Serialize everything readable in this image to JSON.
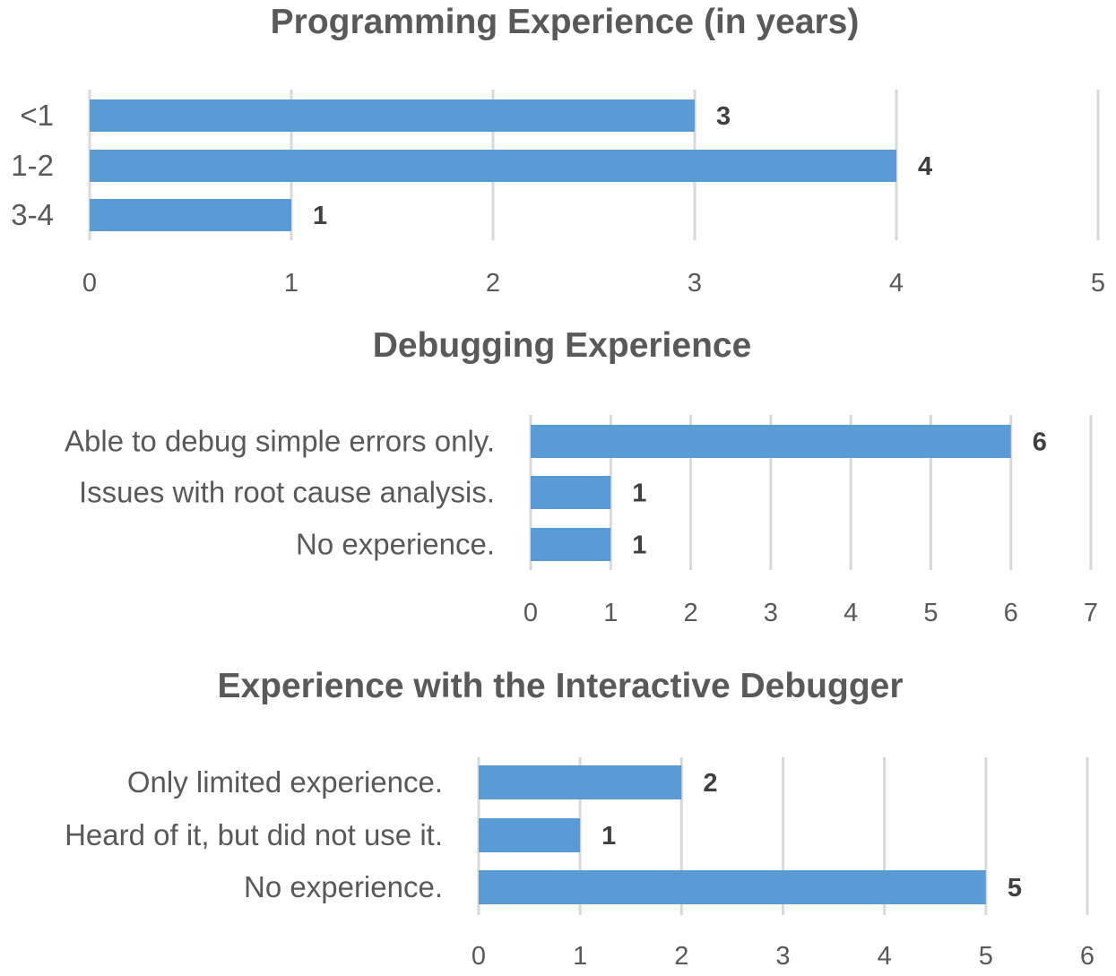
{
  "chart_data": [
    {
      "type": "bar",
      "orientation": "horizontal",
      "title": "Programming Experience (in years)",
      "categories": [
        "<1",
        "1-2",
        "3-4"
      ],
      "values": [
        3,
        4,
        1
      ],
      "xlim": [
        0,
        5
      ],
      "ticks": [
        "0",
        "1",
        "2",
        "3",
        "4",
        "5"
      ],
      "data_labels": [
        "3",
        "4",
        "1"
      ],
      "grid": true,
      "bar_color": "#5b9bd5"
    },
    {
      "type": "bar",
      "orientation": "horizontal",
      "title": "Debugging Experience",
      "categories": [
        "Able to debug simple errors only.",
        "Issues with root cause analysis.",
        "No experience."
      ],
      "values": [
        6,
        1,
        1
      ],
      "xlim": [
        0,
        7
      ],
      "ticks": [
        "0",
        "1",
        "2",
        "3",
        "4",
        "5",
        "6",
        "7"
      ],
      "data_labels": [
        "6",
        "1",
        "1"
      ],
      "grid": true,
      "bar_color": "#5b9bd5"
    },
    {
      "type": "bar",
      "orientation": "horizontal",
      "title": "Experience with the Interactive Debugger",
      "categories": [
        "Only limited experience.",
        "Heard of it, but did not use it.",
        "No experience."
      ],
      "values": [
        2,
        1,
        5
      ],
      "xlim": [
        0,
        6
      ],
      "ticks": [
        "0",
        "1",
        "2",
        "3",
        "4",
        "5",
        "6"
      ],
      "data_labels": [
        "2",
        "1",
        "5"
      ],
      "grid": true,
      "bar_color": "#5b9bd5"
    }
  ]
}
